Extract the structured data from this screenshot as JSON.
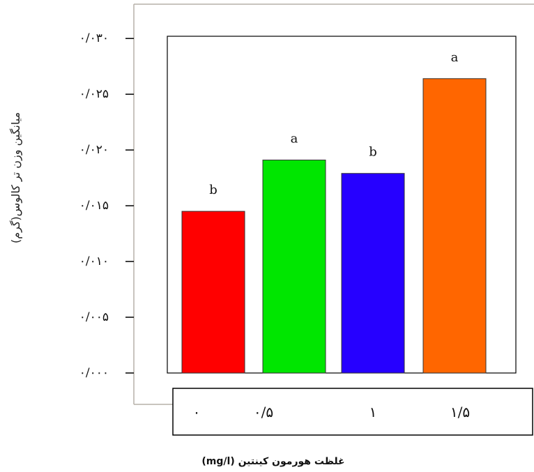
{
  "chart_data": {
    "type": "bar",
    "categories": [
      "۰",
      "۰/۵",
      "۱",
      "۱/۵"
    ],
    "values": [
      0.0145,
      0.0191,
      0.0179,
      0.0264
    ],
    "significance_letters": [
      "b",
      "a",
      "b",
      "a"
    ],
    "colors": [
      "#ff0000",
      "#00e600",
      "#2600ff",
      "#ff6600"
    ],
    "ylim": [
      0,
      0.03
    ],
    "y_ticks": [
      0,
      0.005,
      0.01,
      0.015,
      0.02,
      0.025,
      0.03
    ],
    "y_tick_labels": [
      "۰/۰۰۰",
      "۰/۰۰۵",
      "۰/۰۱۰",
      "۰/۰۱۵",
      "۰/۰۲۰",
      "۰/۰۲۵",
      "۰/۰۳۰"
    ],
    "ylabel": "میانگین وزن تر کالوس(گرم)",
    "xlabel": "غلظت هورمون کینتین (mg/l)",
    "grid": false
  }
}
